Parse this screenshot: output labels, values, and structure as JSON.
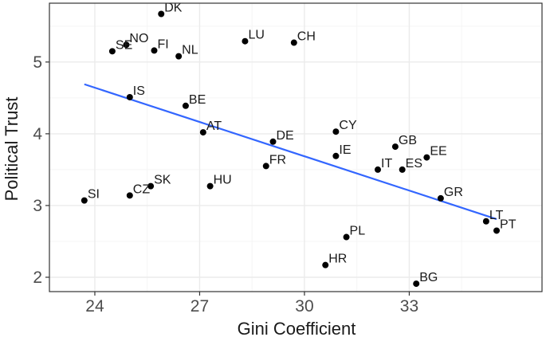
{
  "chart_data": {
    "type": "scatter",
    "xlabel": "Gini Coefficient",
    "ylabel": "Political Trust",
    "xlim": [
      22.7,
      36.8
    ],
    "ylim": [
      1.8,
      5.82
    ],
    "x_ticks": [
      24,
      27,
      30,
      33
    ],
    "y_ticks": [
      2,
      3,
      4,
      5
    ],
    "x_tick_labels": [
      "24",
      "27",
      "30",
      "33"
    ],
    "y_tick_labels": [
      "2",
      "3",
      "4",
      "5"
    ],
    "grid": true,
    "points": [
      {
        "label": "DK",
        "x": 25.9,
        "y": 5.67
      },
      {
        "label": "NO",
        "x": 24.9,
        "y": 5.24
      },
      {
        "label": "SE",
        "x": 24.5,
        "y": 5.15
      },
      {
        "label": "FI",
        "x": 25.7,
        "y": 5.16
      },
      {
        "label": "NL",
        "x": 26.4,
        "y": 5.08
      },
      {
        "label": "LU",
        "x": 28.3,
        "y": 5.29
      },
      {
        "label": "CH",
        "x": 29.7,
        "y": 5.27
      },
      {
        "label": "IS",
        "x": 25.0,
        "y": 4.51
      },
      {
        "label": "BE",
        "x": 26.6,
        "y": 4.39
      },
      {
        "label": "AT",
        "x": 27.1,
        "y": 4.02
      },
      {
        "label": "DE",
        "x": 29.1,
        "y": 3.89
      },
      {
        "label": "CY",
        "x": 30.9,
        "y": 4.03
      },
      {
        "label": "IE",
        "x": 30.9,
        "y": 3.69
      },
      {
        "label": "FR",
        "x": 28.9,
        "y": 3.55
      },
      {
        "label": "GB",
        "x": 32.6,
        "y": 3.82
      },
      {
        "label": "EE",
        "x": 33.5,
        "y": 3.67
      },
      {
        "label": "IT",
        "x": 32.1,
        "y": 3.5
      },
      {
        "label": "ES",
        "x": 32.8,
        "y": 3.5
      },
      {
        "label": "SI",
        "x": 23.7,
        "y": 3.07
      },
      {
        "label": "CZ",
        "x": 25.0,
        "y": 3.14
      },
      {
        "label": "SK",
        "x": 25.6,
        "y": 3.27
      },
      {
        "label": "HU",
        "x": 27.3,
        "y": 3.27
      },
      {
        "label": "GR",
        "x": 33.9,
        "y": 3.1
      },
      {
        "label": "LT",
        "x": 35.2,
        "y": 2.78
      },
      {
        "label": "PT",
        "x": 35.5,
        "y": 2.65
      },
      {
        "label": "PL",
        "x": 31.2,
        "y": 2.56
      },
      {
        "label": "HR",
        "x": 30.6,
        "y": 2.17
      },
      {
        "label": "BG",
        "x": 33.2,
        "y": 1.91
      }
    ],
    "trend_line": {
      "x": [
        23.7,
        35.5
      ],
      "y": [
        4.69,
        2.81
      ]
    },
    "colors": {
      "panel": "#ffffff",
      "grid_major": "#ebebeb",
      "grid_minor": "#f5f5f5",
      "border": "#333333",
      "point": "#000000",
      "trend": "#3366ff"
    }
  }
}
